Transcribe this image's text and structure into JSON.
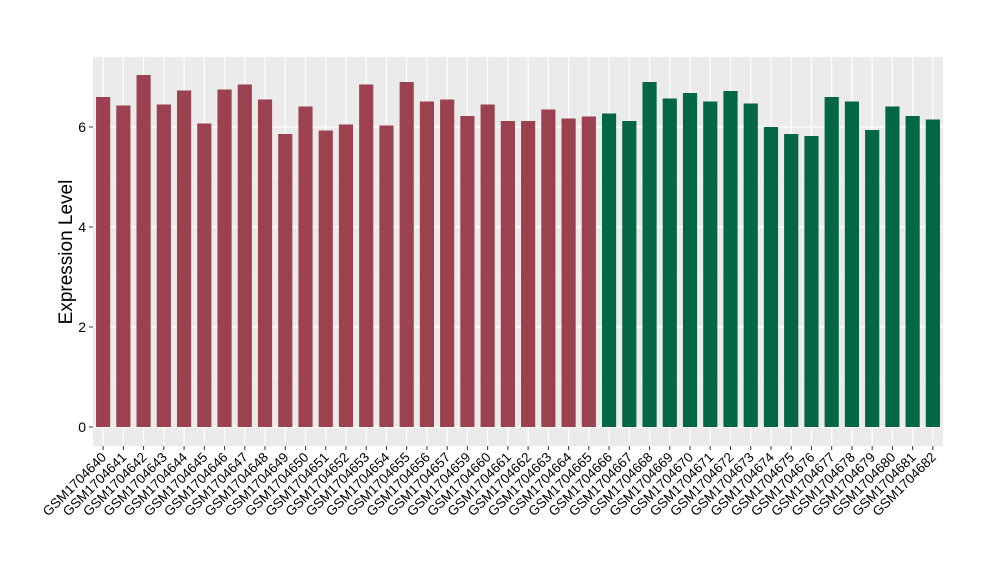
{
  "chart_data": {
    "type": "bar",
    "title": "",
    "xlabel": "",
    "ylabel": "Expression Level",
    "ylim": [
      -0.38,
      7.4
    ],
    "yticks": [
      0,
      2,
      4,
      6
    ],
    "grid": true,
    "legend": "none",
    "categories": [
      "GSM1704640",
      "GSM1704641",
      "GSM1704642",
      "GSM1704643",
      "GSM1704644",
      "GSM1704645",
      "GSM1704646",
      "GSM1704647",
      "GSM1704648",
      "GSM1704649",
      "GSM1704650",
      "GSM1704651",
      "GSM1704652",
      "GSM1704653",
      "GSM1704654",
      "GSM1704655",
      "GSM1704656",
      "GSM1704657",
      "GSM1704659",
      "GSM1704660",
      "GSM1704661",
      "GSM1704662",
      "GSM1704663",
      "GSM1704664",
      "GSM1704665",
      "GSM1704666",
      "GSM1704667",
      "GSM1704668",
      "GSM1704669",
      "GSM1704670",
      "GSM1704671",
      "GSM1704672",
      "GSM1704673",
      "GSM1704674",
      "GSM1704675",
      "GSM1704676",
      "GSM1704677",
      "GSM1704678",
      "GSM1704679",
      "GSM1704680",
      "GSM1704681",
      "GSM1704682"
    ],
    "values": [
      6.6,
      6.43,
      7.04,
      6.45,
      6.73,
      6.07,
      6.75,
      6.85,
      6.55,
      5.86,
      6.41,
      5.93,
      6.05,
      6.85,
      6.03,
      6.9,
      6.51,
      6.55,
      6.22,
      6.45,
      6.12,
      6.12,
      6.35,
      6.17,
      6.21,
      6.27,
      6.12,
      6.9,
      6.57,
      6.68,
      6.51,
      6.72,
      6.47,
      6.0,
      5.86,
      5.82,
      6.6,
      6.51,
      5.94,
      6.41,
      6.22,
      6.15
    ],
    "groups": [
      {
        "color": "#9b4150",
        "count": 25
      },
      {
        "color": "#036645",
        "count": 17
      }
    ],
    "colors": {
      "panel_background": "#ebebeb",
      "grid_major": "#ffffff",
      "grid_minor": "#f5f5f5",
      "axis_text": "#000000",
      "tick": "#333333"
    }
  }
}
